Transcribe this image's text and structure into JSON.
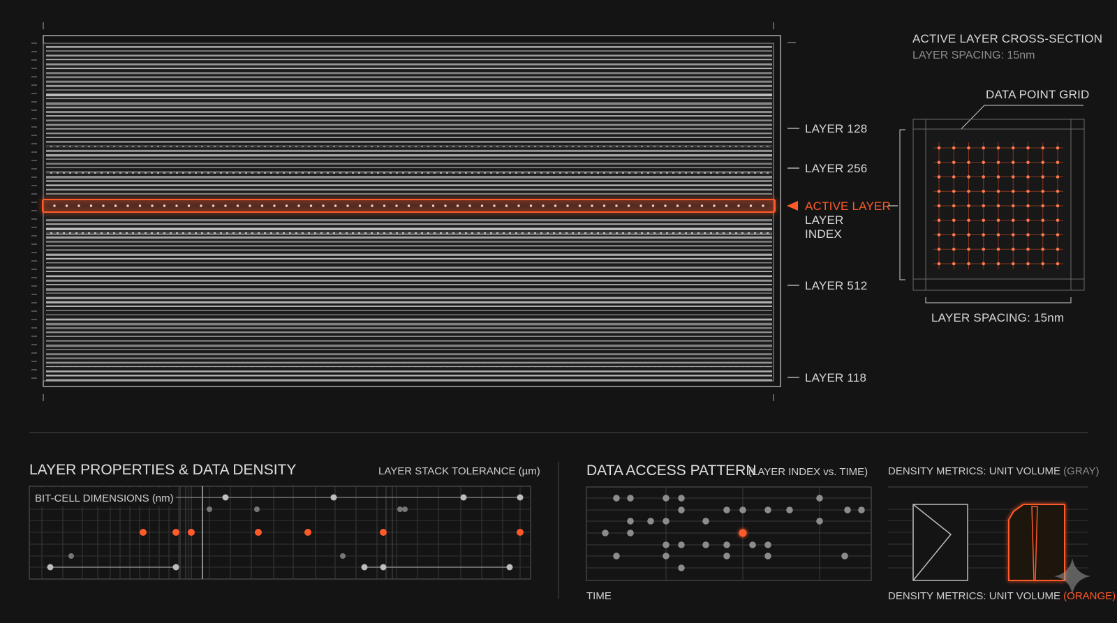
{
  "stack": {
    "layer_labels": [
      "LAYER 128",
      "LAYER 256",
      "LAYER 512",
      "LAYER 118"
    ],
    "active_label": "ACTIVE LAYER",
    "index_label_line1": "LAYER",
    "index_label_line2": "INDEX"
  },
  "cross_section": {
    "title": "ACTIVE LAYER CROSS-SECTION",
    "subtitle": "LAYER SPACING: 15nm",
    "grid_label": "DATA POINT GRID",
    "spacing_label": "LAYER SPACING: 15nm",
    "grid_rows": 9,
    "grid_cols": 9
  },
  "properties": {
    "title": "LAYER PROPERTIES & DATA DENSITY",
    "tolerance_label": "LAYER STACK TOLERANCE (µm)",
    "bitcell_label": "BIT-CELL DIMENSIONS (nm)"
  },
  "access": {
    "title": "DATA ACCESS PATTERN",
    "title_suffix": "(LAYER INDEX vs. TIME)",
    "time_label": "TIME"
  },
  "density": {
    "gray_prefix": "DENSITY METRICS: UNIT VOLUME ",
    "gray_suffix": "(GRAY)",
    "orange_prefix": "DENSITY METRICS: UNIT VOLUME ",
    "orange_suffix": "(ORANGE)"
  },
  "colors": {
    "accent": "#ff5a2a",
    "background": "#141414",
    "line": "#bdbdbd"
  }
}
